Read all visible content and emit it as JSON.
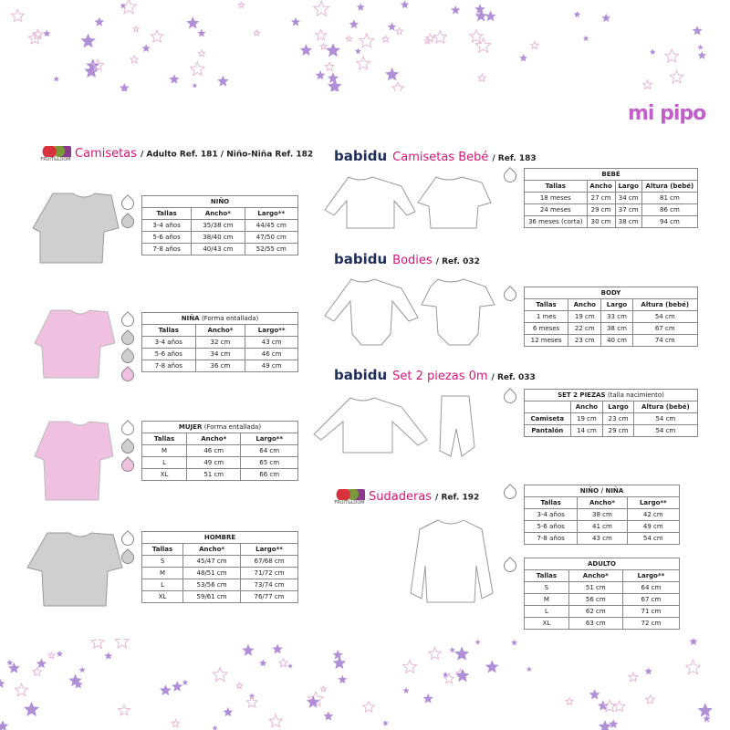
{
  "brand": "mi pipo",
  "colors": {
    "accent": "#d6187a",
    "star_purple": "#b08fd8",
    "shirt_grey": "#cfcfcf",
    "shirt_pink": "#f0c0e0"
  },
  "sections": {
    "camisetas": {
      "brand": "FRUIT of the LOOM",
      "title": "Camisetas",
      "ref": "/ Adulto Ref. 181 / Niño-Niña Ref. 182"
    },
    "bebe": {
      "brand": "babidu",
      "title": "Camisetas Bebé",
      "ref": "/ Ref. 183"
    },
    "bodies": {
      "brand": "babidu",
      "title": "Bodies",
      "ref": "/ Ref. 032"
    },
    "set": {
      "brand": "babidu",
      "title": "Set 2 piezas 0m",
      "ref": "/ Ref. 033"
    },
    "sudaderas": {
      "brand": "FRUIT of the LOOM",
      "title": "Sudaderas",
      "ref": "/ Ref. 192"
    }
  },
  "tables": [
    {
      "title": "NIÑO",
      "note": "",
      "headers": [
        "Tallas",
        "Ancho*",
        "Largo**"
      ],
      "rows": [
        [
          "3-4 años",
          "35/38 cm",
          "44/45 cm"
        ],
        [
          "5-6 años",
          "38/40 cm",
          "47/50 cm"
        ],
        [
          "7-8 años",
          "40/43 cm",
          "52/55 cm"
        ]
      ],
      "colors": [
        "white",
        "grey"
      ]
    },
    {
      "title": "NIÑA",
      "note": "(Forma entallada)",
      "headers": [
        "Tallas",
        "Ancho*",
        "Largo**"
      ],
      "rows": [
        [
          "3-4 años",
          "32 cm",
          "43 cm"
        ],
        [
          "5-6 años",
          "34 cm",
          "46 cm"
        ],
        [
          "7-8 años",
          "36 cm",
          "49 cm"
        ]
      ],
      "colors": [
        "white",
        "grey",
        "grey",
        "pink"
      ]
    },
    {
      "title": "MUJER",
      "note": "(Forma entallada)",
      "headers": [
        "Tallas",
        "Ancho*",
        "Largo**"
      ],
      "rows": [
        [
          "M",
          "46 cm",
          "64 cm"
        ],
        [
          "L",
          "49 cm",
          "65 cm"
        ],
        [
          "XL",
          "51 cm",
          "66 cm"
        ]
      ],
      "colors": [
        "white",
        "grey",
        "pink"
      ]
    },
    {
      "title": "HOMBRE",
      "note": "",
      "headers": [
        "Tallas",
        "Ancho*",
        "Largo**"
      ],
      "rows": [
        [
          "S",
          "45/47 cm",
          "67/68 cm"
        ],
        [
          "M",
          "48/51 cm",
          "71/72 cm"
        ],
        [
          "L",
          "53/56 cm",
          "73/74 cm"
        ],
        [
          "XL",
          "59/61 cm",
          "76/77 cm"
        ]
      ],
      "colors": [
        "white",
        "grey"
      ]
    },
    {
      "title": "BEBÉ",
      "note": "",
      "headers": [
        "Tallas",
        "Ancho",
        "Largo",
        "Altura (bebé)"
      ],
      "rows": [
        [
          "18 meses",
          "27 cm",
          "34 cm",
          "81 cm"
        ],
        [
          "24 meses",
          "29 cm",
          "37 cm",
          "86 cm"
        ],
        [
          "36 meses (corta)",
          "30 cm",
          "38 cm",
          "94 cm"
        ]
      ],
      "colors": [
        "white"
      ]
    },
    {
      "title": "BODY",
      "note": "",
      "headers": [
        "Tallas",
        "Ancho",
        "Largo",
        "Altura (bebé)"
      ],
      "rows": [
        [
          "1 mes",
          "19 cm",
          "33 cm",
          "54 cm"
        ],
        [
          "6 meses",
          "22 cm",
          "38 cm",
          "67 cm"
        ],
        [
          "12 meses",
          "23 cm",
          "40 cm",
          "74 cm"
        ]
      ],
      "colors": [
        "white"
      ]
    },
    {
      "title": "SET 2 PIEZAS",
      "note": "(talla nacimiento)",
      "headers": [
        "",
        "Ancho",
        "Largo",
        "Altura (bebé)"
      ],
      "rows": [
        [
          "Camiseta",
          "19 cm",
          "23 cm",
          "54 cm"
        ],
        [
          "Pantalón",
          "14 cm",
          "29 cm",
          "54 cm"
        ]
      ],
      "colors": [
        "white"
      ]
    },
    {
      "title": "NIÑO / NIÑA",
      "note": "",
      "headers": [
        "Tallas",
        "Ancho*",
        "Largo**"
      ],
      "rows": [
        [
          "3-4 años",
          "38 cm",
          "42 cm"
        ],
        [
          "5-6 años",
          "41 cm",
          "49 cm"
        ],
        [
          "7-8 años",
          "43 cm",
          "54 cm"
        ]
      ],
      "colors": [
        "white"
      ]
    },
    {
      "title": "ADULTO",
      "note": "",
      "headers": [
        "Tallas",
        "Ancho*",
        "Largo**"
      ],
      "rows": [
        [
          "S",
          "51 cm",
          "64 cm"
        ],
        [
          "M",
          "56 cm",
          "67 cm"
        ],
        [
          "L",
          "62 cm",
          "71 cm"
        ],
        [
          "XL",
          "63 cm",
          "72 cm"
        ]
      ],
      "colors": [
        "white"
      ]
    }
  ]
}
